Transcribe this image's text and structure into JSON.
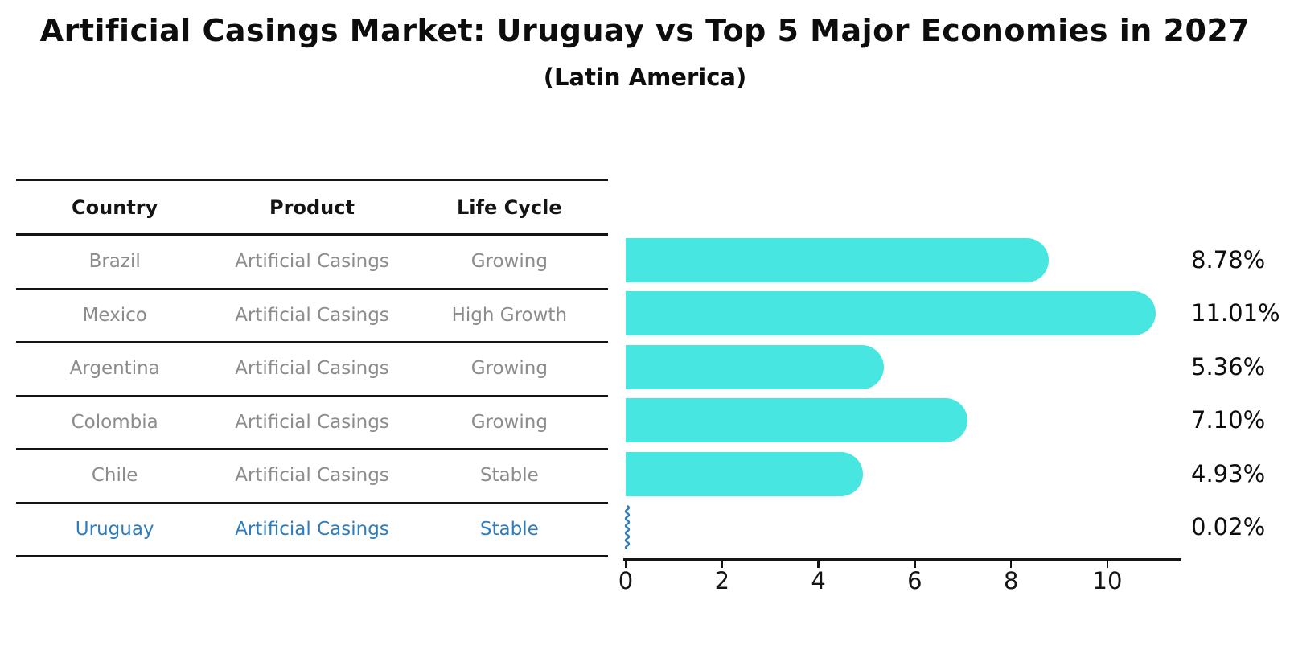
{
  "title": "Artificial Casings Market: Uruguay vs Top 5 Major Economies in 2027",
  "subtitle": "(Latin America)",
  "table": {
    "headers": [
      "Country",
      "Product",
      "Life Cycle"
    ],
    "rows": [
      {
        "cells": [
          "Brazil",
          "Artificial Casings",
          "Growing"
        ],
        "highlight": false
      },
      {
        "cells": [
          "Mexico",
          "Artificial Casings",
          "High Growth"
        ],
        "highlight": false
      },
      {
        "cells": [
          "Argentina",
          "Artificial Casings",
          "Growing"
        ],
        "highlight": false
      },
      {
        "cells": [
          "Colombia",
          "Artificial Casings",
          "Growing"
        ],
        "highlight": false
      },
      {
        "cells": [
          "Chile",
          "Artificial Casings",
          "Stable"
        ],
        "highlight": false
      },
      {
        "cells": [
          "Uruguay",
          "Artificial Casings",
          "Stable"
        ],
        "highlight": true
      }
    ]
  },
  "chart_data": {
    "type": "bar",
    "orientation": "horizontal",
    "title": "Artificial Casings Market: Uruguay vs Top 5 Major Economies in 2027",
    "subtitle": "(Latin America)",
    "categories": [
      "Brazil",
      "Mexico",
      "Argentina",
      "Colombia",
      "Chile",
      "Uruguay"
    ],
    "values": [
      8.78,
      11.01,
      5.36,
      7.1,
      4.93,
      0.02
    ],
    "value_labels": [
      "8.78%",
      "11.01%",
      "5.36%",
      "7.10%",
      "4.93%",
      "0.02%"
    ],
    "xlabel": "",
    "ylabel": "",
    "xticks": [
      0,
      2,
      4,
      6,
      8,
      10
    ],
    "xlim": [
      0,
      11.55
    ],
    "grid": false,
    "legend": false,
    "highlight_index": 5
  },
  "colors": {
    "bar": "#47e6e0",
    "highlight_blue": "#2d7dbe",
    "text_black": "#0d0d0d",
    "text_gray": "#8c8c8c",
    "line": "#141414",
    "background": "#ffffff"
  }
}
